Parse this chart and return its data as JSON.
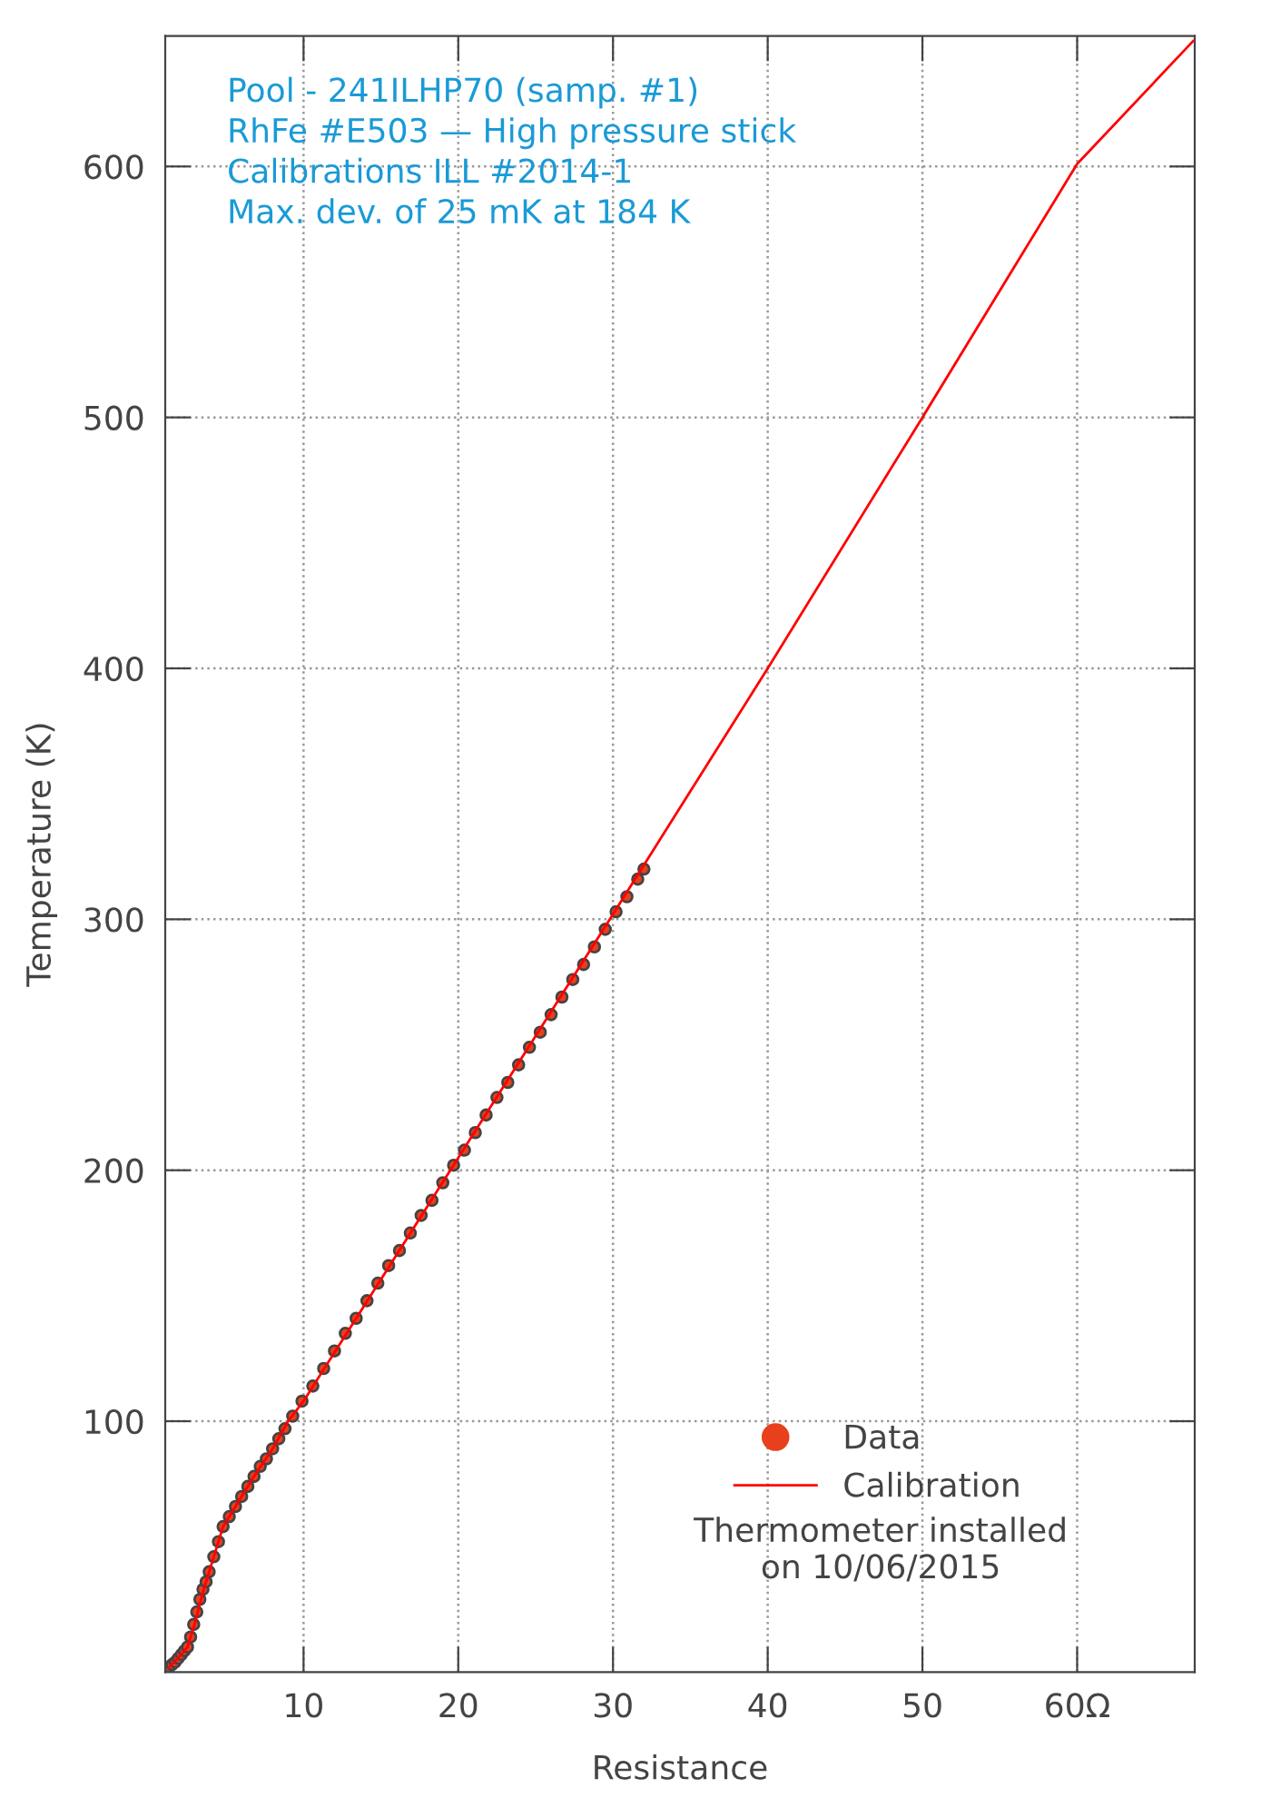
{
  "chart_data": {
    "type": "line",
    "xlabel": "Resistance",
    "ylabel": "Temperature (K)",
    "xlim": [
      1.06,
      67.6
    ],
    "ylim": [
      0,
      652
    ],
    "xticks": [
      10,
      20,
      30,
      40,
      50,
      {
        "value": 60,
        "label": "60Ω"
      }
    ],
    "yticks": [
      100,
      200,
      300,
      400,
      500,
      600
    ],
    "grid": true,
    "legend": "bottom right",
    "series": [
      {
        "name": "Data",
        "type": "scatter",
        "marker": "circle",
        "color": "#e8401c",
        "x": [
          1.3,
          1.5,
          1.7,
          1.9,
          2.1,
          2.3,
          2.5,
          2.7,
          2.9,
          3.1,
          3.3,
          3.5,
          3.7,
          3.9,
          4.2,
          4.5,
          4.8,
          5.2,
          5.6,
          6.0,
          6.4,
          6.8,
          7.2,
          7.6,
          8.0,
          8.4,
          8.8,
          9.3,
          9.9,
          10.6,
          11.3,
          12.0,
          12.7,
          13.4,
          14.1,
          14.8,
          15.5,
          16.2,
          16.9,
          17.6,
          18.3,
          19.0,
          19.7,
          20.4,
          21.1,
          21.8,
          22.5,
          23.2,
          23.9,
          24.6,
          25.3,
          26.0,
          26.7,
          27.4,
          28.1,
          28.8,
          29.5,
          30.2,
          30.9,
          31.6,
          32.0
        ],
        "values": [
          2,
          3,
          4,
          5.5,
          7,
          8.5,
          10,
          14,
          19,
          24,
          29,
          33,
          36,
          40,
          46,
          52,
          58,
          62,
          66,
          70,
          74,
          78,
          82,
          85,
          89,
          93,
          97,
          102,
          108,
          114,
          121,
          128,
          135,
          141,
          148,
          155,
          162,
          168,
          175,
          182,
          188,
          195,
          202,
          208,
          215,
          222,
          229,
          235,
          242,
          249,
          255,
          262,
          269,
          276,
          282,
          289,
          296,
          303,
          309,
          316,
          320
        ]
      },
      {
        "name": "Calibration",
        "marker": "none",
        "line_style": "solid",
        "color": "#ff0000",
        "x": [
          1.3,
          1.8,
          2.5,
          3.0,
          3.5,
          3.9,
          4.8,
          5.6,
          6.8,
          8.0,
          9.0,
          10,
          20,
          30,
          40,
          50,
          60,
          67.5
        ],
        "values": [
          2,
          5,
          10,
          20,
          32,
          40,
          58,
          66,
          78,
          89,
          100,
          108,
          205,
          302,
          400,
          500,
          601,
          650
        ]
      }
    ],
    "annotations": [
      "Pool - 241ILHP70 (samp. #1)",
      "RhFe #E503 — High pressure stick",
      "Calibrations ILL #2014-1",
      "Max. dev. of 25 mK at 184 K",
      "Thermometer installed\non 10/06/2015"
    ]
  }
}
